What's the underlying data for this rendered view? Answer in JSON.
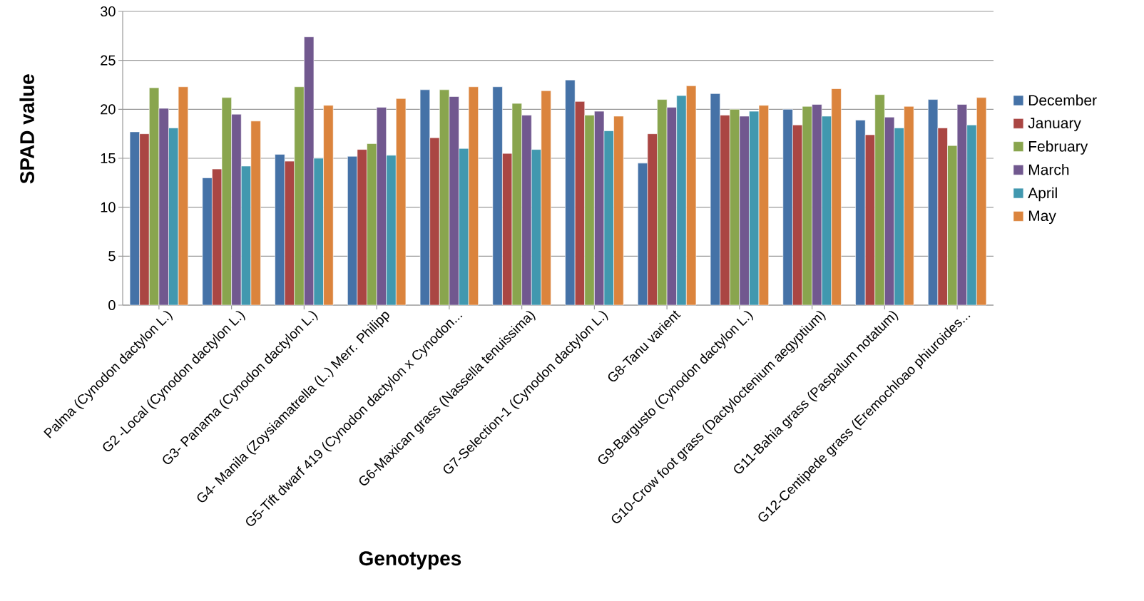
{
  "chart_data": {
    "type": "bar",
    "xlabel": "Genotypes",
    "ylabel": "SPAD value",
    "categories": [
      "Palma (Cynodon dactylon L.)",
      "G2 -Local (Cynodon dactylon L.)",
      "G3- Panama (Cynodon dactylon L.)",
      "G4- Manila (Zoysiamatrella (L.) Merr. Philipp",
      "G5-Tift dwarf 419 (Cynodon dactylon x Cynodon...",
      "G6-Maxican grass (Nassella tenuissima)",
      "G7-Selection-1 (Cynodon dactylon L.)",
      "G8-Tanu varient",
      "G9-Bargusto (Cynodon dactylon L.)",
      "G10-Crow foot grass (Dactyloctenium aegyptium)",
      "G11-Bahia grass (Paspalum notatum)",
      "G12-Centipede grass (Eremochloao phiuroides..."
    ],
    "series": [
      {
        "name": "December",
        "color": "#4572a7",
        "values": [
          17.7,
          13.0,
          15.4,
          15.2,
          22.0,
          22.3,
          23.0,
          14.5,
          21.6,
          20.0,
          18.9,
          21.0
        ]
      },
      {
        "name": "January",
        "color": "#aa4643",
        "values": [
          17.5,
          13.9,
          14.7,
          15.9,
          17.1,
          15.5,
          20.8,
          17.5,
          19.4,
          18.4,
          17.4,
          18.1
        ]
      },
      {
        "name": "February",
        "color": "#89a54e",
        "values": [
          22.2,
          21.2,
          22.3,
          16.5,
          22.0,
          20.6,
          19.4,
          21.0,
          20.0,
          20.3,
          21.5,
          16.3
        ]
      },
      {
        "name": "March",
        "color": "#71588f",
        "values": [
          20.1,
          19.5,
          27.4,
          20.2,
          21.3,
          19.4,
          19.8,
          20.2,
          19.3,
          20.5,
          19.2,
          20.5
        ]
      },
      {
        "name": "April",
        "color": "#4198af",
        "values": [
          18.1,
          14.2,
          15.0,
          15.3,
          16.0,
          15.9,
          17.8,
          21.4,
          19.8,
          19.3,
          18.1,
          18.4
        ]
      },
      {
        "name": "May",
        "color": "#db843d",
        "values": [
          22.3,
          18.8,
          20.4,
          21.1,
          22.3,
          21.9,
          19.3,
          22.4,
          20.4,
          22.1,
          20.3,
          21.2
        ]
      }
    ],
    "ylim": [
      0,
      30
    ],
    "yticks": [
      0,
      5,
      10,
      15,
      20,
      25,
      30
    ],
    "grid": "y",
    "legend": "right"
  }
}
